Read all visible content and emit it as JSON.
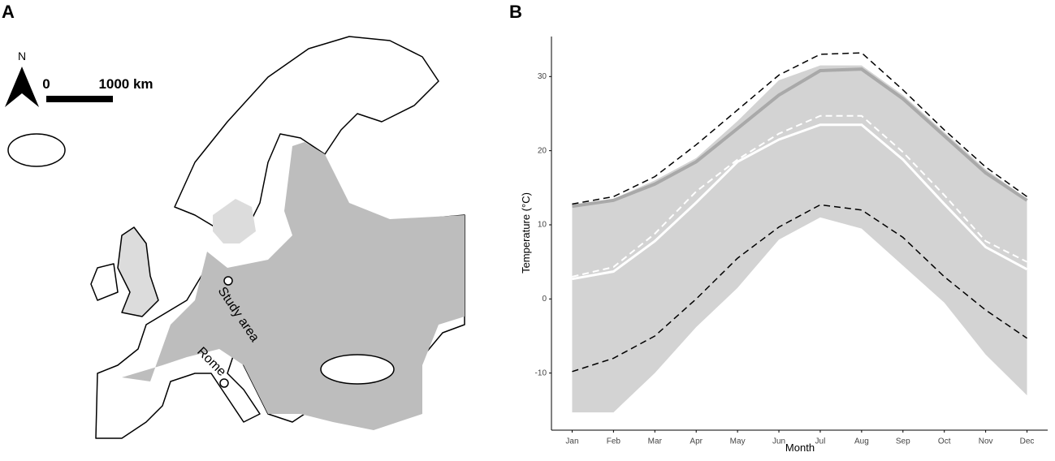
{
  "panel_labels": [
    "A",
    "B"
  ],
  "map": {
    "north_label": "N",
    "scale_start": "0",
    "scale_end": "1000 km",
    "places": [
      "Study area",
      "Rome"
    ]
  },
  "chart_data": {
    "type": "line",
    "categories": [
      "Jan",
      "Feb",
      "Mar",
      "Apr",
      "May",
      "Jun",
      "Jul",
      "Aug",
      "Sep",
      "Oct",
      "Nov",
      "Dec"
    ],
    "band": {
      "color": "#d3d3d3",
      "lower": [
        -15.3,
        -15.3,
        -10,
        -3.8,
        1.5,
        8,
        11,
        9.5,
        4.5,
        -0.5,
        -7.5,
        -13
      ],
      "upper": [
        12.5,
        13.5,
        16,
        19,
        24,
        29.5,
        31.5,
        31.5,
        27.5,
        22.5,
        17.5,
        13.5
      ]
    },
    "series": [
      {
        "color": "#a9a9a9",
        "dashed": false,
        "line_width": 4,
        "values": [
          12.5,
          13.3,
          15.5,
          18.5,
          23,
          27.5,
          30.8,
          31,
          27,
          22,
          17,
          13.3
        ]
      },
      {
        "color": "#ffffff",
        "dashed": false,
        "line_width": 3,
        "values": [
          2.7,
          3.7,
          7.8,
          13,
          18.5,
          21.5,
          23.5,
          23.5,
          18.8,
          12.8,
          7,
          4
        ]
      },
      {
        "color": "#ffffff",
        "dashed": true,
        "line_width": 2,
        "values": [
          3,
          4.3,
          8.8,
          14.5,
          18.8,
          22.3,
          24.7,
          24.7,
          19.8,
          14,
          7.8,
          5
        ]
      },
      {
        "color": "#000000",
        "dashed": true,
        "line_width": 1.5,
        "values": [
          12.8,
          13.8,
          16.5,
          20.8,
          25.5,
          30.2,
          33,
          33.2,
          28.2,
          22.8,
          17.8,
          13.8
        ]
      },
      {
        "color": "#000000",
        "dashed": true,
        "line_width": 1.5,
        "values": [
          -9.8,
          -8,
          -5,
          0,
          5.5,
          9.7,
          12.7,
          12,
          8.3,
          3,
          -1.5,
          -5.3
        ]
      }
    ],
    "ylim": [
      -17.7,
      35.4
    ],
    "yticks": [
      -10,
      0,
      10,
      20,
      30
    ],
    "xlabel": "Month",
    "ylabel": "Temperature (°C)",
    "grid": false
  }
}
